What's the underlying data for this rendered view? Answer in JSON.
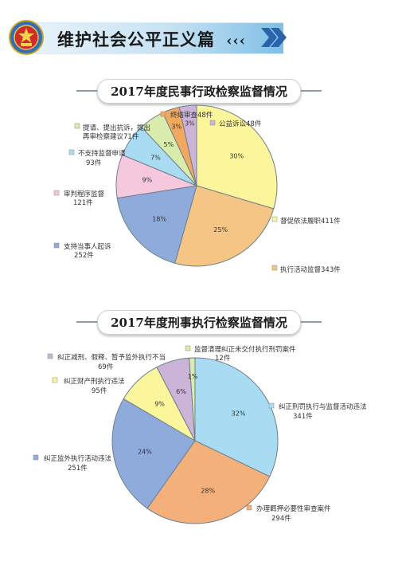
{
  "header": {
    "title": "维护社会公平正义篇",
    "decoration": "‹‹‹"
  },
  "colors": {
    "yellow": "#fbf59c",
    "orange": "#f5b26d",
    "blue": "#8eabdc",
    "pink": "#f6c8dd",
    "cyan": "#a9dcf3",
    "green": "#d9ecab",
    "purple": "#cbb4d7",
    "orange_dark": "#f0a95e",
    "light_orange": "#f4b97a"
  },
  "chart_data": [
    {
      "type": "pie",
      "title": "2017年度民事行政检察监督情况",
      "slices": [
        {
          "label": "督促依法履职411件",
          "value": 411,
          "pct_label": "30%",
          "color": "#fbf59c"
        },
        {
          "label": "执行活动监督343件",
          "value": 343,
          "pct_label": "25%",
          "color": "#f5c585"
        },
        {
          "label": "支持当事人起诉 252件",
          "value": 252,
          "pct_label": "18%",
          "color": "#8eabdc"
        },
        {
          "label": "审判程序监督 121件",
          "value": 121,
          "pct_label": "9%",
          "color": "#f6c8dd"
        },
        {
          "label": "不支持监督申请 93件",
          "value": 93,
          "pct_label": "7%",
          "color": "#a9dcf3"
        },
        {
          "label": "提请、提出抗诉，提出再审检察建议71件",
          "value": 71,
          "pct_label": "5%",
          "color": "#d9ecab"
        },
        {
          "label": "终结审查48件",
          "value": 48,
          "pct_label": "3%",
          "color": "#f0a95e"
        },
        {
          "label": "公益诉讼48件",
          "value": 48,
          "pct_label": "3%",
          "color": "#cbb4d7"
        }
      ]
    },
    {
      "type": "pie",
      "title": "2017年度刑事执行检察监督情况",
      "slices": [
        {
          "label": "纠正刑罚执行与监督活动违法 341件",
          "value": 341,
          "pct_label": "32%",
          "color": "#a9dcf3"
        },
        {
          "label": "办理羁押必要性审查案件 294件",
          "value": 294,
          "pct_label": "28%",
          "color": "#f4b07a"
        },
        {
          "label": "纠正监外执行活动违法 251件",
          "value": 251,
          "pct_label": "24%",
          "color": "#8eabdc"
        },
        {
          "label": "纠正财产刑执行违法 95件",
          "value": 95,
          "pct_label": "9%",
          "color": "#fbf59c"
        },
        {
          "label": "纠正减刑、假释、暂予监外执行不当 69件",
          "value": 69,
          "pct_label": "6%",
          "color": "#cbb4d7"
        },
        {
          "label": "监督清理纠正未交付执行刑罚案件 12件",
          "value": 12,
          "pct_label": "1%",
          "color": "#d9ecab"
        }
      ]
    }
  ]
}
